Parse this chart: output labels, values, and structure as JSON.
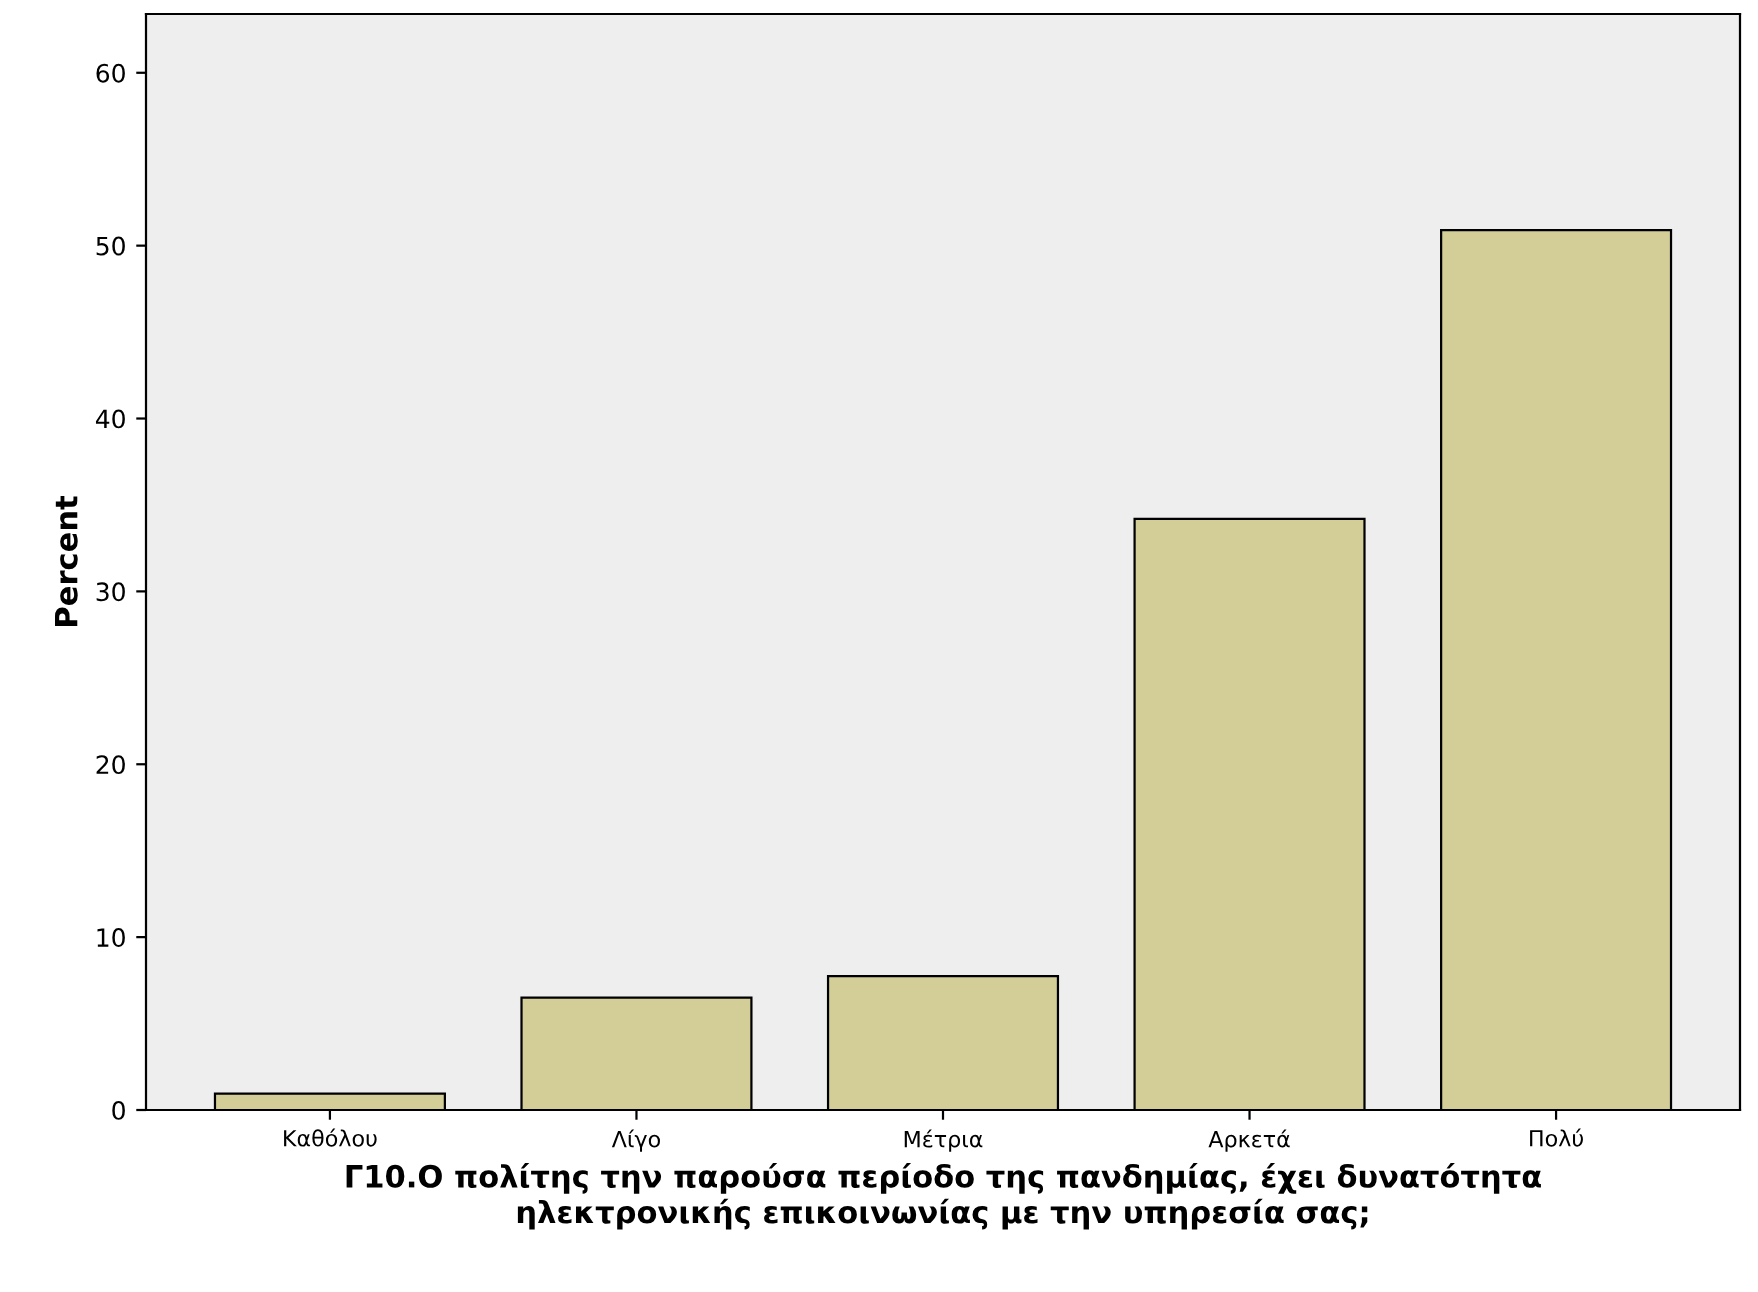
{
  "chart_data": {
    "type": "bar",
    "xlabel": "Γ10.Ο πολίτης την παρούσα περίοδο της πανδημίας, έχει δυνατότητα\nηλεκτρονικής επικοινωνίας με την υπηρεσία σας;",
    "ylabel": "Percent",
    "categories": [
      "Καθόλου",
      "Λίγο",
      "Μέτρια",
      "Αρκετά",
      "Πολύ"
    ],
    "values": [
      0.95,
      6.5,
      7.75,
      34.2,
      50.9
    ],
    "color": "#d3ce97",
    "ylim": [
      0,
      63.4
    ],
    "yticks": [
      0,
      10,
      20,
      30,
      40,
      50,
      60
    ],
    "grid": false
  }
}
